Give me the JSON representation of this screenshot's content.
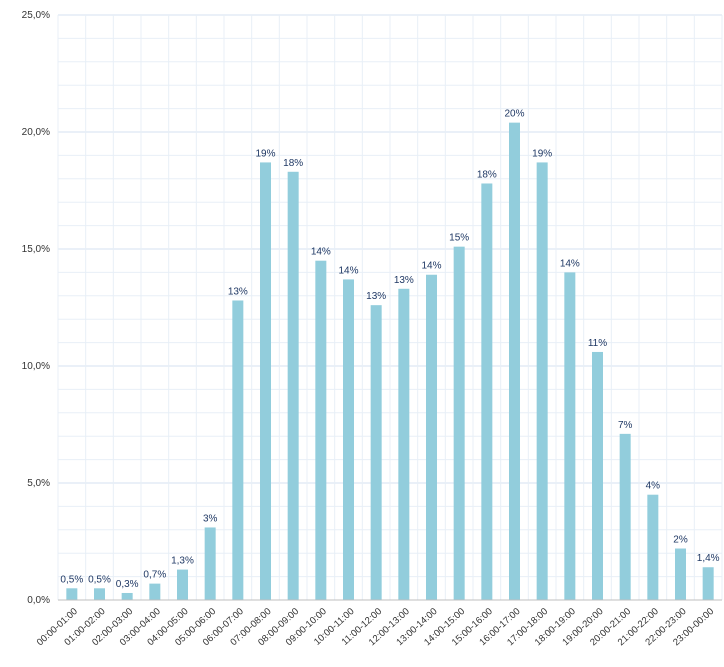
{
  "chart_data": {
    "type": "bar",
    "title": "",
    "xlabel": "",
    "ylabel": "",
    "ylim": [
      0,
      25
    ],
    "y_ticks": [
      "0,0%",
      "5,0%",
      "10,0%",
      "15,0%",
      "20,0%",
      "25,0%"
    ],
    "grid": true,
    "legend": "none",
    "bar_color": "#92cddc",
    "label_color": "#1f3864",
    "categories": [
      "00:00-01:00",
      "01:00-02:00",
      "02:00-03:00",
      "03:00-04:00",
      "04:00-05:00",
      "05:00-06:00",
      "06:00-07:00",
      "07:00-08:00",
      "08:00-09:00",
      "09:00-10:00",
      "10:00-11:00",
      "11:00-12:00",
      "12:00-13:00",
      "13:00-14:00",
      "14:00-15:00",
      "15:00-16:00",
      "16:00-17:00",
      "17:00-18:00",
      "18:00-19:00",
      "19:00-20:00",
      "20:00-21:00",
      "21:00-22:00",
      "22:00-23:00",
      "23:00-00:00"
    ],
    "values": [
      0.5,
      0.5,
      0.3,
      0.7,
      1.3,
      3.1,
      12.8,
      18.7,
      18.3,
      14.5,
      13.7,
      12.6,
      13.3,
      13.9,
      15.1,
      17.8,
      20.4,
      18.7,
      14.0,
      10.6,
      7.1,
      4.5,
      2.2,
      1.4
    ],
    "data_labels": [
      "0,5%",
      "0,5%",
      "0,3%",
      "0,7%",
      "1,3%",
      "3%",
      "13%",
      "19%",
      "18%",
      "14%",
      "14%",
      "13%",
      "13%",
      "14%",
      "15%",
      "18%",
      "20%",
      "19%",
      "14%",
      "11%",
      "7%",
      "4%",
      "2%",
      "1,4%"
    ]
  }
}
